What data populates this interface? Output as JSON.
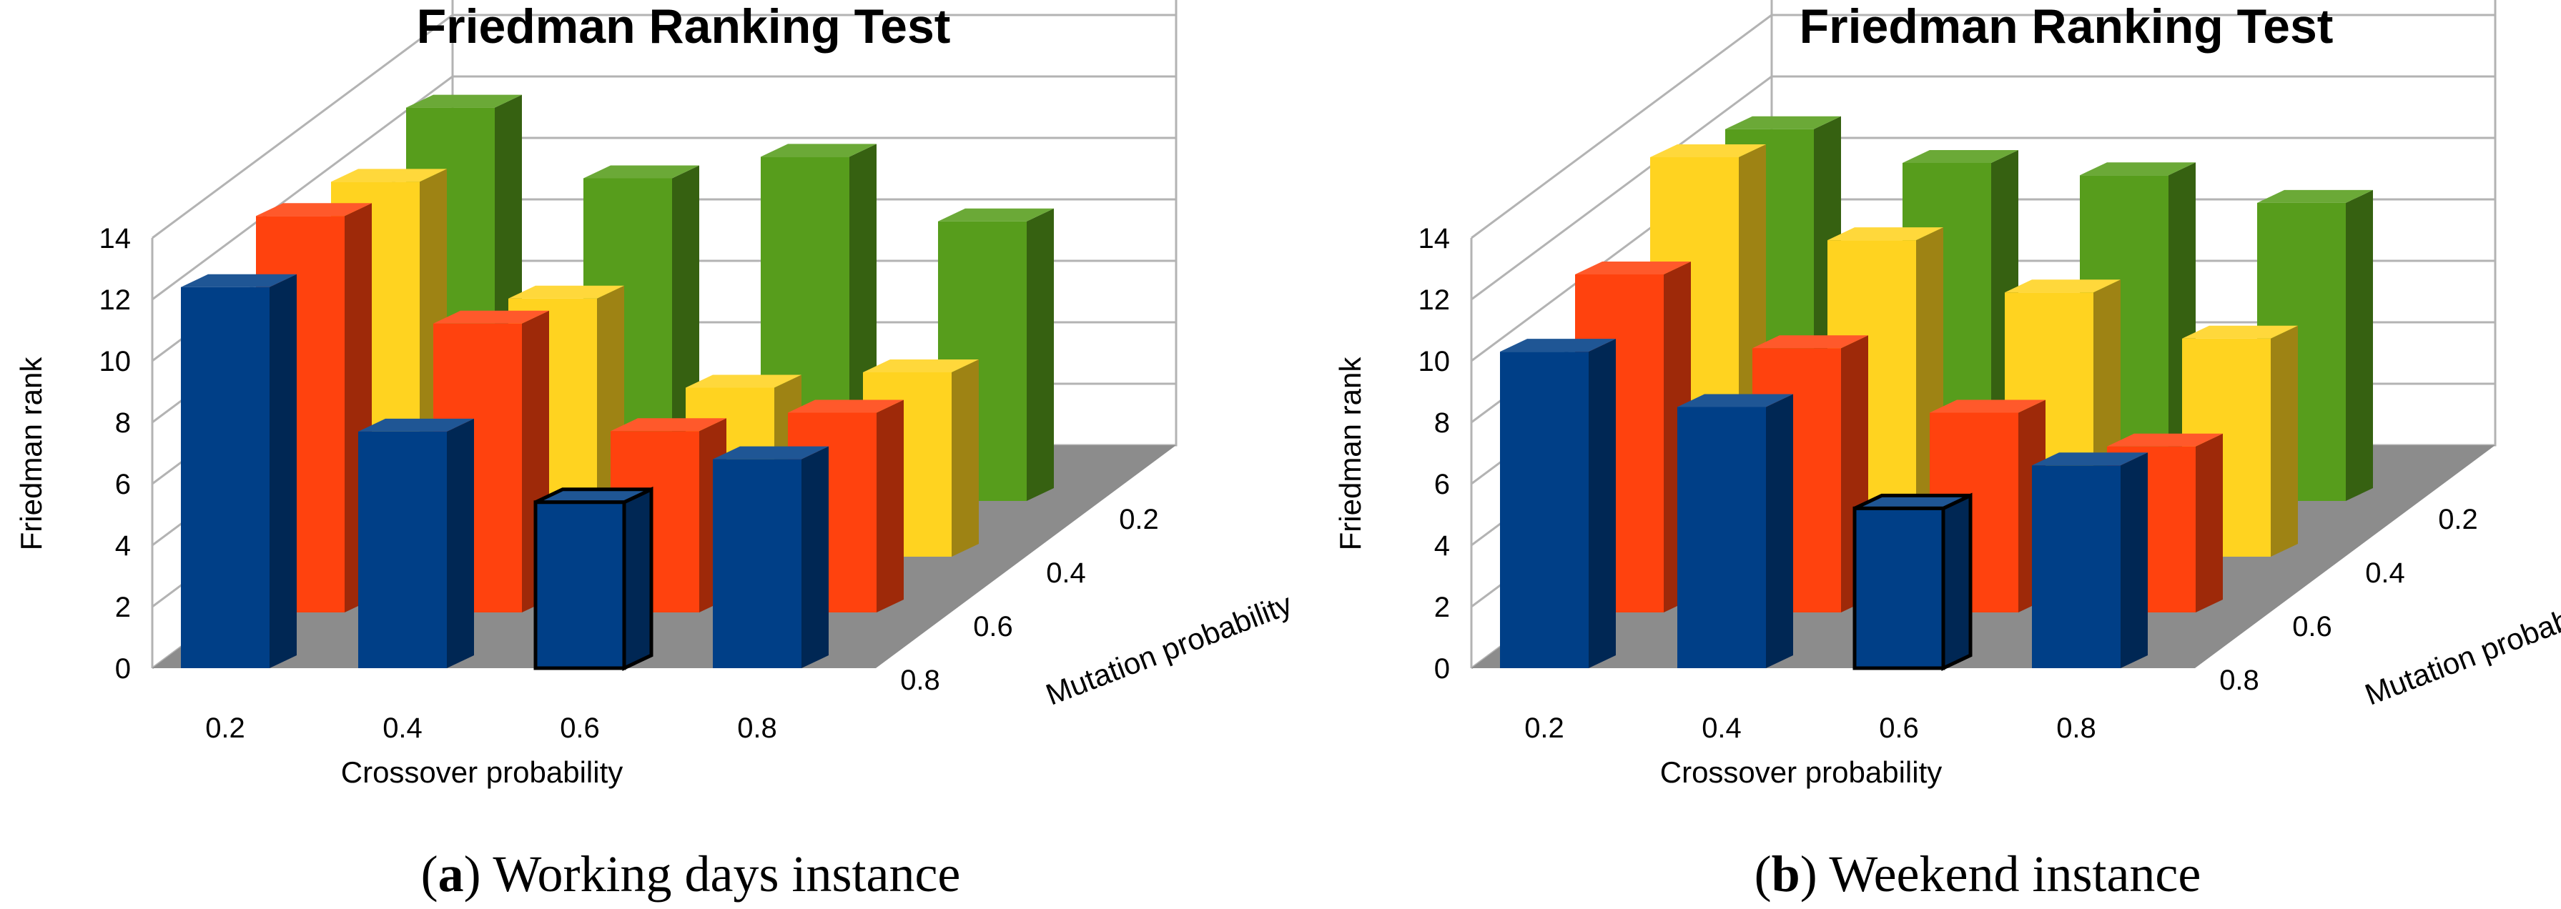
{
  "colors": {
    "series": [
      "#003f87",
      "#ff420e",
      "#ffd320",
      "#579d1c"
    ],
    "floor": "#8c8c8c",
    "grid": "#b3b3b3",
    "highlight_stroke": "#000000"
  },
  "chart_data": [
    {
      "type": "bar3d",
      "panel_letter": "a",
      "caption": "Working days instance",
      "title": "Friedman Ranking Test",
      "ylabel": "Friedman rank",
      "xlabel": "Crossover probability",
      "zlabel": "Mutation probability",
      "ylim": [
        0,
        14
      ],
      "yticks": [
        "0",
        "2",
        "4",
        "6",
        "8",
        "10",
        "12",
        "14"
      ],
      "categories": [
        "0.2",
        "0.4",
        "0.6",
        "0.8"
      ],
      "depth_categories": [
        "0.8",
        "0.6",
        "0.4",
        "0.2"
      ],
      "series": [
        {
          "name": "0.8",
          "values": [
            12.4,
            7.7,
            5.4,
            6.8
          ]
        },
        {
          "name": "0.6",
          "values": [
            12.9,
            9.4,
            5.9,
            6.5
          ]
        },
        {
          "name": "0.4",
          "values": [
            12.2,
            8.4,
            5.5,
            6.0
          ]
        },
        {
          "name": "0.2",
          "values": [
            12.8,
            10.5,
            11.2,
            9.1
          ]
        }
      ],
      "highlight": {
        "series": 0,
        "category": 2
      }
    },
    {
      "type": "bar3d",
      "panel_letter": "b",
      "caption": "Weekend instance",
      "title": "Friedman Ranking Test",
      "ylabel": "Friedman rank",
      "xlabel": "Crossover probability",
      "zlabel": "Mutation probability",
      "ylim": [
        0,
        14
      ],
      "yticks": [
        "0",
        "2",
        "4",
        "6",
        "8",
        "10",
        "12",
        "14"
      ],
      "categories": [
        "0.2",
        "0.4",
        "0.6",
        "0.8"
      ],
      "depth_categories": [
        "0.8",
        "0.6",
        "0.4",
        "0.2"
      ],
      "series": [
        {
          "name": "0.8",
          "values": [
            10.3,
            8.5,
            5.2,
            6.6
          ]
        },
        {
          "name": "0.6",
          "values": [
            11.0,
            8.6,
            6.5,
            5.4
          ]
        },
        {
          "name": "0.4",
          "values": [
            13.0,
            10.3,
            8.6,
            7.1
          ]
        },
        {
          "name": "0.2",
          "values": [
            12.1,
            11.0,
            10.6,
            9.7
          ]
        }
      ],
      "highlight": {
        "series": 0,
        "category": 2
      }
    }
  ]
}
